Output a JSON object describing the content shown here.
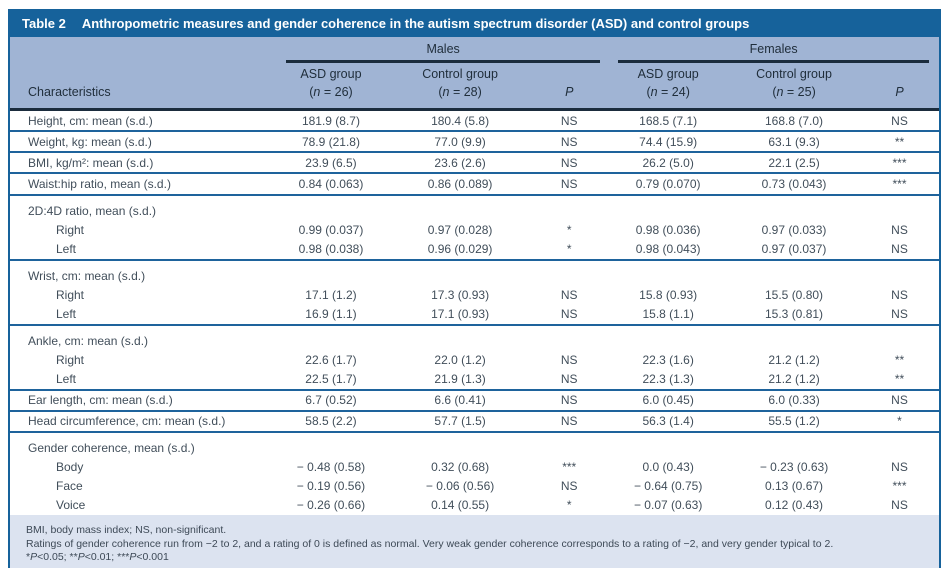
{
  "table": {
    "title": {
      "label": "Table 2",
      "text": "Anthropometric measures and gender coherence in the autism spectrum disorder (ASD) and control groups"
    },
    "header": {
      "characteristics": "Characteristics",
      "groups": [
        {
          "label": "Males"
        },
        {
          "label": "Females"
        }
      ],
      "columns": [
        {
          "name": "ASD group",
          "n_pre": "(",
          "n_char": "n",
          "n_post": " = 26)"
        },
        {
          "name": "Control group",
          "n_pre": "(",
          "n_char": "n",
          "n_post": " = 28)"
        },
        {
          "p": "P"
        },
        {
          "name": "ASD group",
          "n_pre": "(",
          "n_char": "n",
          "n_post": " = 24)"
        },
        {
          "name": "Control group",
          "n_pre": "(",
          "n_char": "n",
          "n_post": " = 25)"
        },
        {
          "p": "P"
        }
      ]
    },
    "rows": [
      {
        "label": "Height, cm: mean (s.d.)",
        "indent": 0,
        "cells": [
          "181.9 (8.7)",
          "180.4 (5.8)",
          "NS",
          "168.5 (7.1)",
          "168.8 (7.0)",
          "NS"
        ],
        "rule": true
      },
      {
        "label": "Weight, kg: mean (s.d.)",
        "indent": 0,
        "cells": [
          "78.9 (21.8)",
          "77.0 (9.9)",
          "NS",
          "74.4 (15.9)",
          "63.1 (9.3)",
          "**"
        ],
        "rule": true
      },
      {
        "label": "BMI, kg/m²: mean (s.d.)",
        "indent": 0,
        "cells": [
          "23.9 (6.5)",
          "23.6 (2.6)",
          "NS",
          "26.2 (5.0)",
          "22.1 (2.5)",
          "***"
        ],
        "rule": true
      },
      {
        "label": "Waist:hip ratio, mean (s.d.)",
        "indent": 0,
        "cells": [
          "0.84 (0.063)",
          "0.86 (0.089)",
          "NS",
          "0.79 (0.070)",
          "0.73 (0.043)",
          "***"
        ],
        "rule": true
      },
      {
        "label": "2D:4D ratio, mean (s.d.)",
        "indent": 0,
        "section": true,
        "cells": [
          "",
          "",
          "",
          "",
          "",
          ""
        ]
      },
      {
        "label": "Right",
        "indent": 1,
        "cells": [
          "0.99 (0.037)",
          "0.97 (0.028)",
          "*",
          "0.98 (0.036)",
          "0.97 (0.033)",
          "NS"
        ]
      },
      {
        "label": "Left",
        "indent": 1,
        "cells": [
          "0.98 (0.038)",
          "0.96 (0.029)",
          "*",
          "0.98 (0.043)",
          "0.97 (0.037)",
          "NS"
        ],
        "rule": true
      },
      {
        "label": "Wrist, cm: mean (s.d.)",
        "indent": 0,
        "section": true,
        "cells": [
          "",
          "",
          "",
          "",
          "",
          ""
        ]
      },
      {
        "label": "Right",
        "indent": 1,
        "cells": [
          "17.1 (1.2)",
          "17.3 (0.93)",
          "NS",
          "15.8 (0.93)",
          "15.5 (0.80)",
          "NS"
        ]
      },
      {
        "label": "Left",
        "indent": 1,
        "cells": [
          "16.9 (1.1)",
          "17.1 (0.93)",
          "NS",
          "15.8 (1.1)",
          "15.3 (0.81)",
          "NS"
        ],
        "rule": true
      },
      {
        "label": "Ankle, cm: mean (s.d.)",
        "indent": 0,
        "section": true,
        "cells": [
          "",
          "",
          "",
          "",
          "",
          ""
        ]
      },
      {
        "label": "Right",
        "indent": 1,
        "cells": [
          "22.6 (1.7)",
          "22.0 (1.2)",
          "NS",
          "22.3 (1.6)",
          "21.2 (1.2)",
          "**"
        ]
      },
      {
        "label": "Left",
        "indent": 1,
        "cells": [
          "22.5 (1.7)",
          "21.9 (1.3)",
          "NS",
          "22.3 (1.3)",
          "21.2 (1.2)",
          "**"
        ],
        "rule": true
      },
      {
        "label": "Ear length, cm: mean (s.d.)",
        "indent": 0,
        "cells": [
          "6.7 (0.52)",
          "6.6 (0.41)",
          "NS",
          "6.0 (0.45)",
          "6.0 (0.33)",
          "NS"
        ],
        "rule": true
      },
      {
        "label": "Head circumference, cm: mean (s.d.)",
        "indent": 0,
        "cells": [
          "58.5 (2.2)",
          "57.7 (1.5)",
          "NS",
          "56.3 (1.4)",
          "55.5 (1.2)",
          "*"
        ],
        "rule": true
      },
      {
        "label": "Gender coherence, mean (s.d.)",
        "indent": 0,
        "section": true,
        "cells": [
          "",
          "",
          "",
          "",
          "",
          ""
        ]
      },
      {
        "label": "Body",
        "indent": 1,
        "cells": [
          "− 0.48 (0.58)",
          "0.32 (0.68)",
          "***",
          "0.0 (0.43)",
          "− 0.23 (0.63)",
          "NS"
        ]
      },
      {
        "label": "Face",
        "indent": 1,
        "cells": [
          "− 0.19 (0.56)",
          "− 0.06 (0.56)",
          "NS",
          "− 0.64 (0.75)",
          "0.13 (0.67)",
          "***"
        ]
      },
      {
        "label": "Voice",
        "indent": 1,
        "cells": [
          "− 0.26 (0.66)",
          "0.14 (0.55)",
          "*",
          "− 0.07 (0.63)",
          "0.12 (0.43)",
          "NS"
        ]
      }
    ],
    "footnotes": {
      "line1": "BMI, body mass index; NS, non-significant.",
      "line2": "Ratings of gender coherence run from −2 to 2, and a rating of 0 is defined as normal. Very weak gender coherence corresponds to a rating of −2, and very gender typical to 2.",
      "significance_segments": [
        {
          "text": "*"
        },
        {
          "text": "P",
          "italic": true
        },
        {
          "text": "<0.05; **"
        },
        {
          "text": "P",
          "italic": true
        },
        {
          "text": "<0.01; ***"
        },
        {
          "text": "P",
          "italic": true
        },
        {
          "text": "<0.001"
        }
      ]
    },
    "colors": {
      "header_bar": "#16629b",
      "subheader_bg": "#a0b4d4",
      "footer_bg": "#dce3f0",
      "body_rule": "#1e639c",
      "group_underline": "#1b2c3d",
      "body_text": "#414e5a"
    }
  }
}
